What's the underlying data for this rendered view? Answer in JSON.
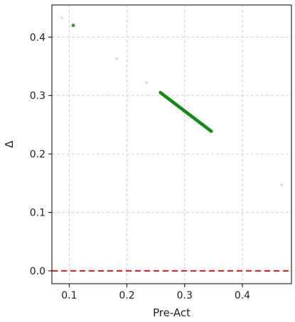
{
  "chart_data": {
    "type": "scatter",
    "xlabel": "Pre-Act",
    "ylabel": "Δ",
    "xlim": [
      0.07,
      0.485
    ],
    "ylim": [
      -0.022,
      0.455
    ],
    "x_ticks": [
      0.1,
      0.2,
      0.3,
      0.4
    ],
    "x_tick_labels": [
      "0.1",
      "0.2",
      "0.3",
      "0.4"
    ],
    "y_ticks": [
      0.0,
      0.1,
      0.2,
      0.3,
      0.4
    ],
    "y_tick_labels": [
      "0.0",
      "0.1",
      "0.2",
      "0.3",
      "0.4"
    ],
    "grid": true,
    "grid_style": "dashed",
    "reference_line": {
      "y": 0.0,
      "color": "#e8141a",
      "style": "dashed"
    },
    "series": [
      {
        "color": "#d9d9d9",
        "points": [
          [
            0.087,
            0.433
          ],
          [
            0.182,
            0.363
          ],
          [
            0.234,
            0.322
          ],
          [
            0.468,
            0.147
          ]
        ]
      },
      {
        "color": "#118a11",
        "points": [
          [
            0.107,
            0.42
          ],
          [
            0.258,
            0.305
          ],
          [
            0.262,
            0.302
          ],
          [
            0.266,
            0.299
          ],
          [
            0.27,
            0.296
          ],
          [
            0.274,
            0.293
          ],
          [
            0.278,
            0.29
          ],
          [
            0.282,
            0.287
          ],
          [
            0.286,
            0.284
          ],
          [
            0.29,
            0.281
          ],
          [
            0.294,
            0.278
          ],
          [
            0.298,
            0.275
          ],
          [
            0.302,
            0.272
          ],
          [
            0.306,
            0.269
          ],
          [
            0.31,
            0.266
          ],
          [
            0.314,
            0.263
          ],
          [
            0.318,
            0.26
          ],
          [
            0.322,
            0.257
          ],
          [
            0.326,
            0.254
          ],
          [
            0.33,
            0.251
          ],
          [
            0.334,
            0.248
          ],
          [
            0.338,
            0.245
          ],
          [
            0.342,
            0.242
          ],
          [
            0.346,
            0.239
          ]
        ]
      }
    ]
  }
}
